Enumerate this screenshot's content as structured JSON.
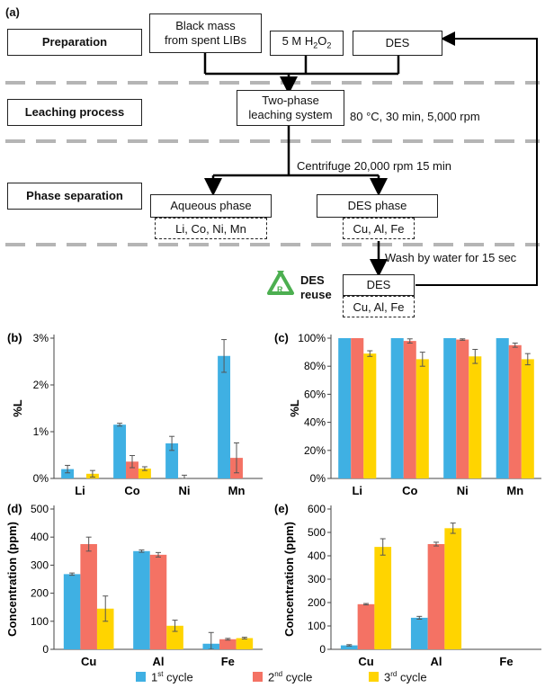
{
  "colors": {
    "c1": "#3fb0e3",
    "c2": "#f47264",
    "c3": "#ffd400",
    "arrow": "#000000",
    "dash": "#b5b5b5",
    "recycle": "#4caf50"
  },
  "flow": {
    "panel_label": "(a)",
    "stages": {
      "preparation": "Preparation",
      "leaching": "Leaching process",
      "separation": "Phase separation"
    },
    "black_mass_line1": "Black mass",
    "black_mass_line2": "from spent LIBs",
    "h2o2_prefix": "5 M H",
    "h2o2_sub1": "2",
    "h2o2_mid": "O",
    "h2o2_sub2": "2",
    "des": "DES",
    "two_phase_line1": "Two-phase",
    "two_phase_line2": "leaching system",
    "conditions": "80 °C, 30 min, 5,000 rpm",
    "centrifuge": "Centrifuge 20,000 rpm 15 min",
    "aqueous": "Aqueous phase",
    "aqueous_metals": "Li, Co, Ni, Mn",
    "des_phase": "DES phase",
    "des_metals": "Cu, Al, Fe",
    "wash": "Wash by water for 15 sec",
    "des_reuse_1": "DES",
    "des_reuse_2": "reuse",
    "des_final": "DES",
    "des_final_metals": "Cu, Al, Fe",
    "recycle_letter": "R"
  },
  "legend": {
    "c1_num": "1",
    "c1_sup": "st",
    "c1_text": " cycle",
    "c2_num": "2",
    "c2_sup": "nd",
    "c2_text": " cycle",
    "c3_num": "3",
    "c3_sup": "rd",
    "c3_text": " cycle"
  },
  "chart_data": [
    {
      "panel": "(b)",
      "type": "bar",
      "categories": [
        "Li",
        "Co",
        "Ni",
        "Mn"
      ],
      "series": [
        {
          "name": "1st cycle",
          "values": [
            0.2,
            1.15,
            0.75,
            2.62
          ],
          "errors": [
            0.08,
            0.03,
            0.15,
            0.35
          ]
        },
        {
          "name": "2nd cycle",
          "values": [
            0.0,
            0.36,
            0.0,
            0.44
          ],
          "errors": [
            0,
            0.13,
            0.07,
            0.32
          ]
        },
        {
          "name": "3rd cycle",
          "values": [
            0.1,
            0.21,
            0.0,
            0.0
          ],
          "errors": [
            0.07,
            0.04,
            0,
            0
          ]
        }
      ],
      "ylabel": "%L",
      "ylim": [
        0,
        3
      ],
      "yticks": [
        0,
        1,
        2,
        3
      ],
      "ytick_labels": [
        "0%",
        "1%",
        "2%",
        "3%"
      ]
    },
    {
      "panel": "(c)",
      "type": "bar",
      "categories": [
        "Li",
        "Co",
        "Ni",
        "Mn"
      ],
      "series": [
        {
          "name": "1st cycle",
          "values": [
            100,
            100,
            100,
            100
          ],
          "errors": [
            0,
            0,
            0,
            0
          ]
        },
        {
          "name": "2nd cycle",
          "values": [
            100,
            98,
            99,
            95
          ],
          "errors": [
            0,
            1.5,
            0.5,
            1.5
          ]
        },
        {
          "name": "3rd cycle",
          "values": [
            89,
            85,
            87,
            85
          ],
          "errors": [
            2,
            5,
            5,
            4
          ]
        }
      ],
      "ylabel": "%L",
      "ylim": [
        0,
        100
      ],
      "yticks": [
        0,
        20,
        40,
        60,
        80,
        100
      ],
      "ytick_labels": [
        "0%",
        "20%",
        "40%",
        "60%",
        "80%",
        "100%"
      ]
    },
    {
      "panel": "(d)",
      "type": "bar",
      "categories": [
        "Cu",
        "Al",
        "Fe"
      ],
      "series": [
        {
          "name": "1st cycle",
          "values": [
            268,
            350,
            20
          ],
          "errors": [
            4,
            4,
            40
          ]
        },
        {
          "name": "2nd cycle",
          "values": [
            375,
            337,
            36
          ],
          "errors": [
            25,
            8,
            3
          ]
        },
        {
          "name": "3rd cycle",
          "values": [
            145,
            84,
            40
          ],
          "errors": [
            45,
            20,
            3
          ]
        }
      ],
      "ylabel": "Concentration (ppm)",
      "ylim": [
        0,
        500
      ],
      "yticks": [
        0,
        100,
        200,
        300,
        400,
        500
      ],
      "ytick_labels": [
        "0",
        "100",
        "200",
        "300",
        "400",
        "500"
      ]
    },
    {
      "panel": "(e)",
      "type": "bar",
      "categories": [
        "Cu",
        "Al",
        "Fe"
      ],
      "series": [
        {
          "name": "1st cycle",
          "values": [
            17,
            135,
            0
          ],
          "errors": [
            3,
            6,
            0
          ]
        },
        {
          "name": "2nd cycle",
          "values": [
            193,
            450,
            0
          ],
          "errors": [
            3,
            8,
            0
          ]
        },
        {
          "name": "3rd cycle",
          "values": [
            438,
            518,
            0
          ],
          "errors": [
            35,
            22,
            0
          ]
        }
      ],
      "ylabel": "Concentration (ppm)",
      "ylim": [
        0,
        600
      ],
      "yticks": [
        0,
        100,
        200,
        300,
        400,
        500,
        600
      ],
      "ytick_labels": [
        "0",
        "100",
        "200",
        "300",
        "400",
        "500",
        "600"
      ]
    }
  ]
}
